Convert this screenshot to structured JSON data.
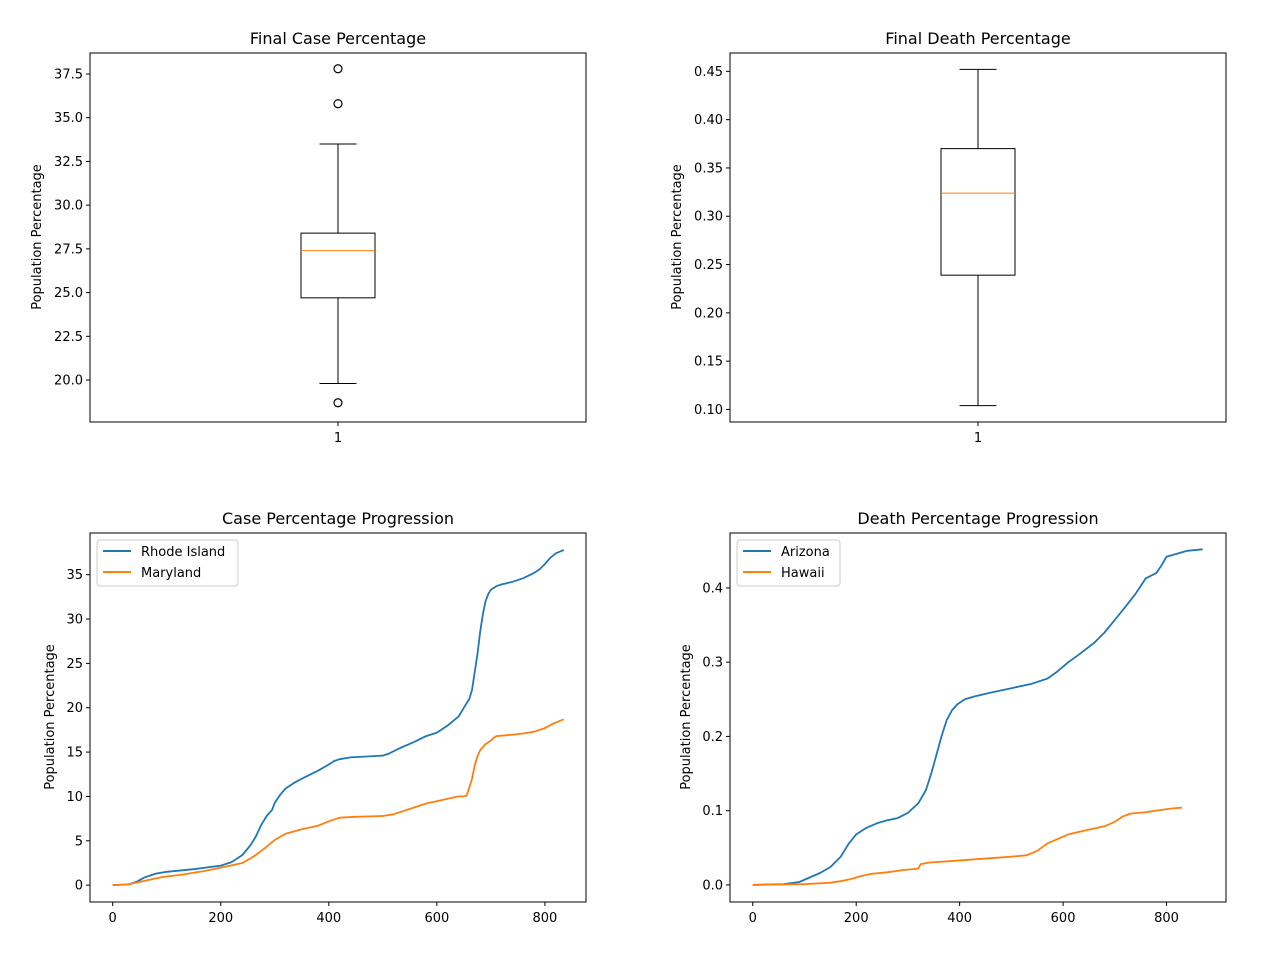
{
  "figure": {
    "background": "#ffffff"
  },
  "chart_data": [
    {
      "id": "final_case",
      "type": "boxplot",
      "title": "Final Case Percentage",
      "xlabel": "",
      "ylabel": "Population Percentage",
      "xticks": [
        "1"
      ],
      "ylim": [
        17.6,
        38.7
      ],
      "yticks": [
        20.0,
        22.5,
        25.0,
        27.5,
        30.0,
        32.5,
        35.0,
        37.5
      ],
      "ytick_labels": [
        "20.0",
        "22.5",
        "25.0",
        "27.5",
        "30.0",
        "32.5",
        "35.0",
        "37.5"
      ],
      "box": {
        "whisker_low": 19.8,
        "q1": 24.7,
        "median": 27.4,
        "q3": 28.4,
        "whisker_high": 33.5
      },
      "outliers": [
        37.8,
        35.8,
        18.7
      ],
      "colors": {
        "box": "#000000",
        "median": "#ff7f0e"
      }
    },
    {
      "id": "final_death",
      "type": "boxplot",
      "title": "Final Death Percentage",
      "xlabel": "",
      "ylabel": "Population Percentage",
      "xticks": [
        "1"
      ],
      "ylim": [
        0.087,
        0.469
      ],
      "yticks": [
        0.1,
        0.15,
        0.2,
        0.25,
        0.3,
        0.35,
        0.4,
        0.45
      ],
      "ytick_labels": [
        "0.10",
        "0.15",
        "0.20",
        "0.25",
        "0.30",
        "0.35",
        "0.40",
        "0.45"
      ],
      "box": {
        "whisker_low": 0.104,
        "q1": 0.239,
        "median": 0.324,
        "q3": 0.37,
        "whisker_high": 0.452
      },
      "outliers": [],
      "colors": {
        "box": "#000000",
        "median": "#ff7f0e"
      }
    },
    {
      "id": "case_progression",
      "type": "line",
      "title": "Case Percentage Progression",
      "xlabel": "",
      "ylabel": "Population Percentage",
      "xlim": [
        -42,
        876
      ],
      "ylim": [
        -1.9,
        39.7
      ],
      "xticks": [
        0,
        200,
        400,
        600,
        800
      ],
      "xtick_labels": [
        "0",
        "200",
        "400",
        "600",
        "800"
      ],
      "yticks": [
        0,
        5,
        10,
        15,
        20,
        25,
        30,
        35
      ],
      "ytick_labels": [
        "0",
        "5",
        "10",
        "15",
        "20",
        "25",
        "30",
        "35"
      ],
      "legend": "upper left",
      "series": [
        {
          "name": "Rhode Island",
          "color": "#1f77b4",
          "x": [
            0,
            30,
            45,
            60,
            80,
            100,
            150,
            200,
            220,
            240,
            255,
            265,
            275,
            285,
            295,
            300,
            310,
            320,
            335,
            350,
            380,
            400,
            410,
            420,
            440,
            470,
            500,
            510,
            530,
            560,
            580,
            600,
            620,
            640,
            650,
            660,
            665,
            670,
            675,
            680,
            685,
            690,
            695,
            700,
            710,
            720,
            740,
            760,
            780,
            790,
            800,
            810,
            820,
            835
          ],
          "y": [
            0,
            0.1,
            0.4,
            0.9,
            1.3,
            1.5,
            1.8,
            2.2,
            2.6,
            3.4,
            4.5,
            5.5,
            6.8,
            7.8,
            8.5,
            9.3,
            10.2,
            10.9,
            11.5,
            12.0,
            12.9,
            13.6,
            14.0,
            14.2,
            14.4,
            14.5,
            14.6,
            14.8,
            15.4,
            16.2,
            16.8,
            17.2,
            18.0,
            19.0,
            20.0,
            21.0,
            22.0,
            24.0,
            26.0,
            28.5,
            30.5,
            32.0,
            32.8,
            33.3,
            33.7,
            33.9,
            34.2,
            34.6,
            35.2,
            35.6,
            36.2,
            36.9,
            37.4,
            37.8
          ]
        },
        {
          "name": "Maryland",
          "color": "#ff7f0e",
          "x": [
            0,
            30,
            60,
            90,
            130,
            170,
            210,
            240,
            260,
            280,
            300,
            320,
            350,
            380,
            400,
            420,
            450,
            500,
            520,
            550,
            580,
            610,
            640,
            650,
            655,
            660,
            665,
            670,
            675,
            680,
            690,
            700,
            705,
            710,
            730,
            760,
            780,
            800,
            815,
            835
          ],
          "y": [
            0,
            0.1,
            0.5,
            0.9,
            1.2,
            1.6,
            2.1,
            2.5,
            3.2,
            4.1,
            5.1,
            5.8,
            6.3,
            6.7,
            7.2,
            7.6,
            7.7,
            7.8,
            8.0,
            8.6,
            9.2,
            9.6,
            10.0,
            10.0,
            10.1,
            11.0,
            12.0,
            13.5,
            14.5,
            15.2,
            15.9,
            16.3,
            16.6,
            16.8,
            16.9,
            17.1,
            17.3,
            17.7,
            18.2,
            18.7
          ]
        }
      ]
    },
    {
      "id": "death_progression",
      "type": "line",
      "title": "Death Percentage Progression",
      "xlabel": "",
      "ylabel": "Population Percentage",
      "xlim": [
        -44,
        915
      ],
      "ylim": [
        -0.023,
        0.474
      ],
      "xticks": [
        0,
        200,
        400,
        600,
        800
      ],
      "xtick_labels": [
        "0",
        "200",
        "400",
        "600",
        "800"
      ],
      "yticks": [
        0.0,
        0.1,
        0.2,
        0.3,
        0.4
      ],
      "ytick_labels": [
        "0.0",
        "0.1",
        "0.2",
        "0.3",
        "0.4"
      ],
      "legend": "upper left",
      "series": [
        {
          "name": "Arizona",
          "color": "#1f77b4",
          "x": [
            0,
            60,
            90,
            110,
            130,
            150,
            170,
            185,
            200,
            220,
            240,
            260,
            280,
            300,
            320,
            335,
            345,
            355,
            365,
            375,
            385,
            395,
            410,
            430,
            460,
            500,
            540,
            570,
            590,
            610,
            630,
            660,
            680,
            700,
            720,
            740,
            760,
            780,
            790,
            800,
            820,
            840,
            870
          ],
          "y": [
            0,
            0.001,
            0.004,
            0.01,
            0.016,
            0.024,
            0.038,
            0.055,
            0.068,
            0.077,
            0.083,
            0.087,
            0.09,
            0.097,
            0.11,
            0.128,
            0.15,
            0.175,
            0.2,
            0.222,
            0.235,
            0.243,
            0.25,
            0.254,
            0.259,
            0.265,
            0.271,
            0.278,
            0.288,
            0.3,
            0.31,
            0.326,
            0.34,
            0.357,
            0.374,
            0.392,
            0.413,
            0.42,
            0.43,
            0.442,
            0.446,
            0.45,
            0.452
          ]
        },
        {
          "name": "Hawaii",
          "color": "#ff7f0e",
          "x": [
            0,
            100,
            150,
            170,
            190,
            210,
            230,
            260,
            290,
            320,
            325,
            340,
            380,
            420,
            460,
            500,
            530,
            550,
            570,
            590,
            610,
            640,
            680,
            700,
            715,
            730,
            760,
            790,
            810,
            830
          ],
          "y": [
            0,
            0.001,
            0.003,
            0.005,
            0.008,
            0.012,
            0.015,
            0.017,
            0.02,
            0.022,
            0.028,
            0.03,
            0.032,
            0.034,
            0.036,
            0.038,
            0.04,
            0.046,
            0.056,
            0.062,
            0.068,
            0.073,
            0.079,
            0.085,
            0.092,
            0.096,
            0.098,
            0.101,
            0.103,
            0.104
          ]
        }
      ]
    }
  ]
}
